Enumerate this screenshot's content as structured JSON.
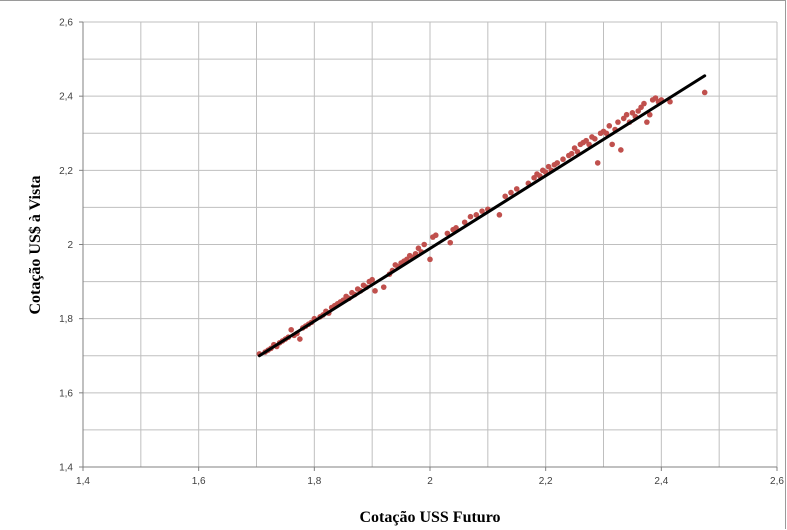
{
  "chart_data": {
    "type": "scatter",
    "title": "",
    "xlabel": "Cotação USS Futuro",
    "ylabel": "Cotação US$ à Vista",
    "xlim": [
      1.4,
      2.6
    ],
    "ylim": [
      1.4,
      2.6
    ],
    "x_ticks": [
      "1,4",
      "1,6",
      "1,8",
      "2",
      "2,2",
      "2,4",
      "2,6"
    ],
    "y_ticks": [
      "1,4",
      "1,6",
      "1,8",
      "2",
      "2,2",
      "2,4",
      "2,6"
    ],
    "grid": true,
    "legend": "none",
    "colors": {
      "points": "#c0504d",
      "trend": "#000000",
      "grid": "#bfbfbf"
    },
    "series": [
      {
        "type": "scatter",
        "points": [
          [
            1.705,
            1.705
          ],
          [
            1.715,
            1.71
          ],
          [
            1.72,
            1.715
          ],
          [
            1.725,
            1.72
          ],
          [
            1.73,
            1.73
          ],
          [
            1.735,
            1.725
          ],
          [
            1.74,
            1.735
          ],
          [
            1.745,
            1.74
          ],
          [
            1.75,
            1.745
          ],
          [
            1.755,
            1.75
          ],
          [
            1.76,
            1.77
          ],
          [
            1.765,
            1.755
          ],
          [
            1.77,
            1.76
          ],
          [
            1.775,
            1.745
          ],
          [
            1.78,
            1.775
          ],
          [
            1.785,
            1.78
          ],
          [
            1.79,
            1.785
          ],
          [
            1.795,
            1.79
          ],
          [
            1.8,
            1.8
          ],
          [
            1.81,
            1.805
          ],
          [
            1.815,
            1.81
          ],
          [
            1.82,
            1.82
          ],
          [
            1.825,
            1.815
          ],
          [
            1.83,
            1.83
          ],
          [
            1.835,
            1.835
          ],
          [
            1.84,
            1.84
          ],
          [
            1.845,
            1.845
          ],
          [
            1.85,
            1.85
          ],
          [
            1.855,
            1.86
          ],
          [
            1.86,
            1.855
          ],
          [
            1.865,
            1.87
          ],
          [
            1.87,
            1.865
          ],
          [
            1.875,
            1.88
          ],
          [
            1.88,
            1.875
          ],
          [
            1.885,
            1.89
          ],
          [
            1.89,
            1.885
          ],
          [
            1.895,
            1.9
          ],
          [
            1.9,
            1.905
          ],
          [
            1.905,
            1.875
          ],
          [
            1.92,
            1.885
          ],
          [
            1.93,
            1.92
          ],
          [
            1.935,
            1.93
          ],
          [
            1.94,
            1.945
          ],
          [
            1.945,
            1.94
          ],
          [
            1.95,
            1.95
          ],
          [
            1.955,
            1.955
          ],
          [
            1.96,
            1.96
          ],
          [
            1.965,
            1.97
          ],
          [
            1.97,
            1.965
          ],
          [
            1.975,
            1.975
          ],
          [
            1.98,
            1.99
          ],
          [
            1.985,
            1.98
          ],
          [
            1.99,
            2.0
          ],
          [
            2.0,
            1.96
          ],
          [
            2.005,
            2.02
          ],
          [
            2.01,
            2.025
          ],
          [
            2.03,
            2.03
          ],
          [
            2.035,
            2.005
          ],
          [
            2.04,
            2.04
          ],
          [
            2.045,
            2.045
          ],
          [
            2.06,
            2.06
          ],
          [
            2.07,
            2.075
          ],
          [
            2.08,
            2.08
          ],
          [
            2.09,
            2.09
          ],
          [
            2.1,
            2.095
          ],
          [
            2.12,
            2.08
          ],
          [
            2.13,
            2.13
          ],
          [
            2.14,
            2.14
          ],
          [
            2.15,
            2.15
          ],
          [
            2.17,
            2.165
          ],
          [
            2.18,
            2.18
          ],
          [
            2.185,
            2.19
          ],
          [
            2.19,
            2.185
          ],
          [
            2.195,
            2.2
          ],
          [
            2.2,
            2.195
          ],
          [
            2.205,
            2.21
          ],
          [
            2.21,
            2.2
          ],
          [
            2.215,
            2.215
          ],
          [
            2.22,
            2.22
          ],
          [
            2.23,
            2.23
          ],
          [
            2.24,
            2.24
          ],
          [
            2.245,
            2.245
          ],
          [
            2.25,
            2.26
          ],
          [
            2.255,
            2.25
          ],
          [
            2.26,
            2.27
          ],
          [
            2.265,
            2.275
          ],
          [
            2.27,
            2.28
          ],
          [
            2.275,
            2.27
          ],
          [
            2.28,
            2.29
          ],
          [
            2.285,
            2.285
          ],
          [
            2.29,
            2.22
          ],
          [
            2.295,
            2.3
          ],
          [
            2.3,
            2.305
          ],
          [
            2.305,
            2.3
          ],
          [
            2.31,
            2.32
          ],
          [
            2.315,
            2.27
          ],
          [
            2.32,
            2.31
          ],
          [
            2.325,
            2.33
          ],
          [
            2.33,
            2.255
          ],
          [
            2.335,
            2.34
          ],
          [
            2.34,
            2.35
          ],
          [
            2.345,
            2.33
          ],
          [
            2.35,
            2.355
          ],
          [
            2.355,
            2.345
          ],
          [
            2.36,
            2.36
          ],
          [
            2.365,
            2.37
          ],
          [
            2.37,
            2.38
          ],
          [
            2.375,
            2.33
          ],
          [
            2.38,
            2.35
          ],
          [
            2.385,
            2.39
          ],
          [
            2.39,
            2.395
          ],
          [
            2.395,
            2.385
          ],
          [
            2.4,
            2.39
          ],
          [
            2.415,
            2.385
          ],
          [
            2.475,
            2.41
          ]
        ]
      },
      {
        "type": "line",
        "points": [
          [
            1.705,
            1.7
          ],
          [
            2.475,
            2.455
          ]
        ]
      }
    ]
  }
}
